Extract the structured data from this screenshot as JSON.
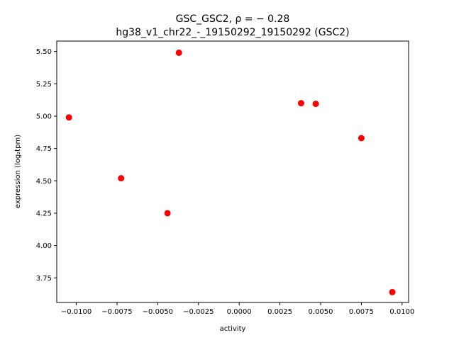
{
  "chart_data": {
    "type": "scatter",
    "title_line1": "GSC_GSC2, ρ = − 0.28",
    "title_line2": "hg38_v1_chr22_-_19150292_19150292 (GSC2)",
    "xlabel": "activity",
    "ylabel": "expression (log₂tpm)",
    "xlim": [
      -0.0112,
      0.0104
    ],
    "ylim": [
      3.56,
      5.58
    ],
    "grid": false,
    "marker_color": "#ff0000",
    "x_ticks": [
      {
        "value": -0.01,
        "label": "−0.0100"
      },
      {
        "value": -0.0075,
        "label": "−0.0075"
      },
      {
        "value": -0.005,
        "label": "−0.0050"
      },
      {
        "value": -0.0025,
        "label": "−0.0025"
      },
      {
        "value": 0.0,
        "label": "0.0000"
      },
      {
        "value": 0.0025,
        "label": "0.0025"
      },
      {
        "value": 0.005,
        "label": "0.0050"
      },
      {
        "value": 0.0075,
        "label": "0.0075"
      },
      {
        "value": 0.01,
        "label": "0.0100"
      }
    ],
    "y_ticks": [
      {
        "value": 3.75,
        "label": "3.75"
      },
      {
        "value": 4.0,
        "label": "4.00"
      },
      {
        "value": 4.25,
        "label": "4.25"
      },
      {
        "value": 4.5,
        "label": "4.50"
      },
      {
        "value": 4.75,
        "label": "4.75"
      },
      {
        "value": 5.0,
        "label": "5.00"
      },
      {
        "value": 5.25,
        "label": "5.25"
      },
      {
        "value": 5.5,
        "label": "5.50"
      }
    ],
    "points": [
      {
        "x": -0.01045,
        "y": 4.99
      },
      {
        "x": -0.00725,
        "y": 4.52
      },
      {
        "x": -0.0037,
        "y": 5.49
      },
      {
        "x": -0.0044,
        "y": 4.25
      },
      {
        "x": 0.0038,
        "y": 5.1
      },
      {
        "x": 0.0047,
        "y": 5.095
      },
      {
        "x": 0.0075,
        "y": 4.83
      },
      {
        "x": 0.0094,
        "y": 3.64
      }
    ]
  }
}
